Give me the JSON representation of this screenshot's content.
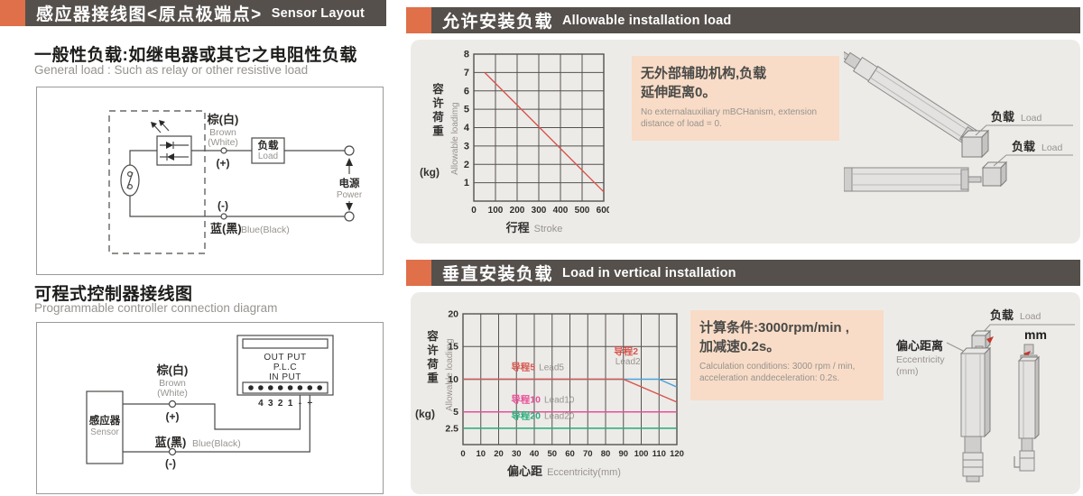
{
  "colors": {
    "header_bg": "#55504C",
    "accent_orange": "#DF7049",
    "panel_bg": "#EDEBE8",
    "note_bg": "#F8DCC7",
    "line_red": "#D6554D",
    "line_blue": "#4AA3DD",
    "line_magenta": "#E94E98",
    "line_green": "#27B07C"
  },
  "left": {
    "header": {
      "zh": "感应器接线图<原点极端点>",
      "en": "Sensor Layout"
    },
    "general": {
      "zh": "一般性负载:如继电器或其它之电阻性负载",
      "en": "General load : Such as relay or other resistive load"
    },
    "plc_section": {
      "zh": "可程式控制器接线图",
      "en": "Programmable controller connection diagram"
    },
    "circuit1": {
      "brown_zh": "棕(白)",
      "brown_en1": "Brown",
      "brown_en2": "(White)",
      "plus": "(+)",
      "minus": "(-)",
      "load_zh": "负载",
      "load_en": "Load",
      "power_zh": "电源",
      "power_en": "Power",
      "blue_zh": "蓝(黑)",
      "blue_en": "Blue(Black)"
    },
    "circuit2": {
      "sensor_zh": "感应器",
      "sensor_en": "Sensor",
      "brown_zh": "棕(白)",
      "brown_en1": "Brown",
      "brown_en2": "(White)",
      "plus": "(+)",
      "minus": "(-)",
      "blue_zh": "蓝(黑)",
      "blue_en": "Blue(Black)",
      "plc_line1": "OUT PUT",
      "plc_line2": "P.L.C",
      "plc_line3": "IN PUT",
      "terminal_labels": [
        "4",
        "3",
        "2",
        "1",
        "-",
        "+"
      ]
    }
  },
  "right": {
    "panel1": {
      "header_zh": "允许安装负载",
      "header_en": "Allowable installation load",
      "note_zh1": "无外部辅助机构,负载",
      "note_zh2": "延伸距离0。",
      "note_en": "No externalauxiliary mBCHanism, extension distance of load = 0.",
      "load1_zh": "负载",
      "load1_en": "Load",
      "load2_zh": "负载",
      "load2_en": "Load"
    },
    "panel2": {
      "header_zh": "垂直安装负载",
      "header_en": "Load in vertical installation",
      "note_zh1": "计算条件:3000rpm/min ,",
      "note_zh2": "加减速0.2s。",
      "note_en": "Calculation conditions: 3000 rpm / min, acceleration anddeceleration: 0.2s.",
      "load_zh": "负载",
      "load_en": "Load",
      "mm": "mm",
      "ecc_zh": "偏心距离",
      "ecc_en": "Eccentricity",
      "ecc_mm": "(mm)"
    }
  },
  "chart_data": [
    {
      "type": "line",
      "title": "允许安装负载 Allowable installation load",
      "xlabel_zh": "行程",
      "xlabel_en": "Stroke",
      "ylabel_zh": "容许荷重",
      "ylabel_unit": "(kg)",
      "ylabel_en": "Allowable loadimg",
      "xlim": [
        0,
        600
      ],
      "ylim": [
        0,
        8
      ],
      "xticks": [
        0,
        100,
        200,
        300,
        400,
        500,
        600
      ],
      "yticks": [
        1,
        2,
        3,
        4,
        5,
        6,
        7,
        8
      ],
      "grid": true,
      "legend": "none",
      "series": [
        {
          "name": "allowable-load",
          "color": "#D6554D",
          "points": [
            [
              50,
              7
            ],
            [
              600,
              0.5
            ]
          ]
        }
      ]
    },
    {
      "type": "line",
      "title": "垂直安装负载 Load in vertical installation",
      "xlabel_zh": "偏心距",
      "xlabel_en": "Eccentricity(mm)",
      "ylabel_zh": "容许荷重",
      "ylabel_unit": "(kg)",
      "ylabel_en": "Allowable loadimg",
      "xlim": [
        0,
        120
      ],
      "ylim": [
        0,
        20
      ],
      "xticks": [
        0,
        10,
        20,
        30,
        40,
        50,
        60,
        70,
        80,
        90,
        100,
        110,
        120
      ],
      "yticks": [
        2.5,
        5,
        10,
        15,
        20
      ],
      "grid": true,
      "legend": "inline",
      "series": [
        {
          "name_zh": "导程2",
          "name_en": "Lead2",
          "color": "#4AA3DD",
          "label_color": "#D6554D",
          "points": [
            [
              0,
              10
            ],
            [
              110,
              10
            ],
            [
              120,
              8.8
            ]
          ],
          "label_at": [
            91.5,
            13.8
          ],
          "label_stacked": true
        },
        {
          "name_zh": "导程5",
          "name_en": "Lead5",
          "color": "#D6554D",
          "label_color": "#D6554D",
          "points": [
            [
              0,
              10
            ],
            [
              90,
              10
            ],
            [
              120,
              6.5
            ]
          ],
          "label_at": [
            27,
            11.4
          ]
        },
        {
          "name_zh": "导程10",
          "name_en": "Lead10",
          "color": "#E94E98",
          "label_color": "#E94E98",
          "points": [
            [
              0,
              5
            ],
            [
              120,
              5
            ]
          ],
          "label_at": [
            27,
            6.4
          ]
        },
        {
          "name_zh": "导程20",
          "name_en": "Lead20",
          "color": "#27B07C",
          "label_color": "#27B07C",
          "points": [
            [
              0,
              2.5
            ],
            [
              120,
              2.5
            ]
          ],
          "label_at": [
            27,
            3.9
          ]
        }
      ]
    }
  ]
}
